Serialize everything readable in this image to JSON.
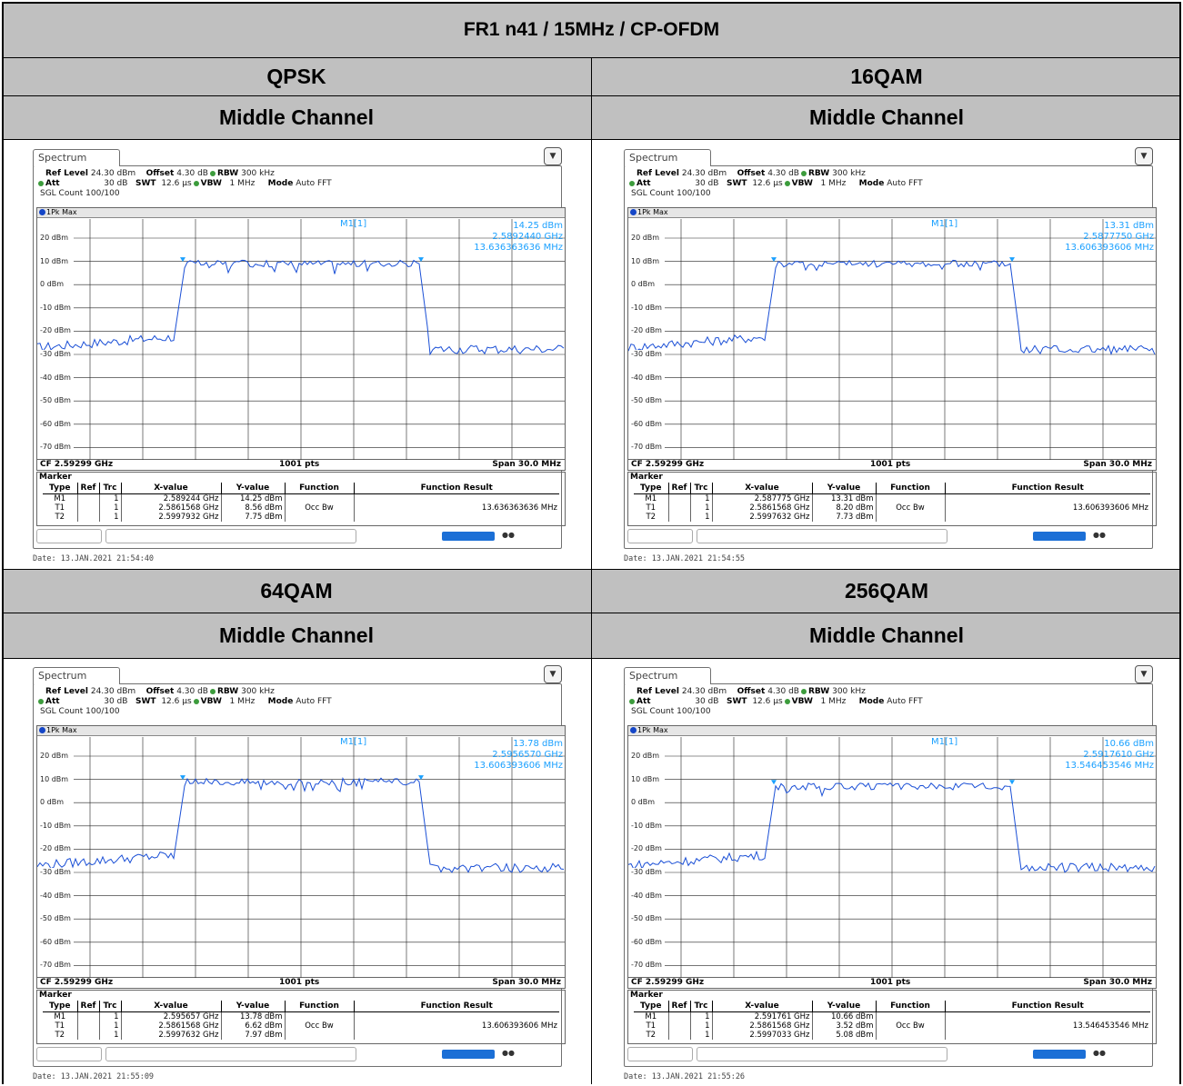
{
  "table": {
    "title": "FR1 n41 / 15MHz / CP-OFDM",
    "modulations": [
      "QPSK",
      "16QAM",
      "64QAM",
      "256QAM"
    ],
    "channel_label": "Middle Channel"
  },
  "common": {
    "tab": "Spectrum",
    "ref_level_label": "Ref Level",
    "ref_level": "24.30 dBm",
    "offset_label": "Offset",
    "offset": "4.30 dB",
    "rbw_label": "RBW",
    "rbw": "300 kHz",
    "att_label": "Att",
    "att": "30 dB",
    "swt_label": "SWT",
    "swt": "12.6 µs",
    "vbw_label": "VBW",
    "vbw": "1 MHz",
    "mode_label": "Mode",
    "mode": "Auto FFT",
    "sgl": "SGL Count 100/100",
    "trace": "1Pk Max",
    "y_ticks": [
      "20 dBm",
      "10 dBm",
      "0 dBm",
      "-10 dBm",
      "-20 dBm",
      "-30 dBm",
      "-40 dBm",
      "-50 dBm",
      "-60 dBm",
      "-70 dBm"
    ],
    "cf": "CF 2.59299 GHz",
    "pts": "1001 pts",
    "span": "Span 30.0 MHz",
    "marker_title": "Marker",
    "cols": [
      "Type",
      "Ref",
      "Trc",
      "X-value",
      "Y-value",
      "Function",
      "Function Result"
    ],
    "occ_label": "Occ Bw",
    "m1_label": "M1[1]",
    "trc": "1"
  },
  "panels": [
    {
      "m1_y": "14.25 dBm",
      "m1_x": "2.5892440 GHz",
      "occ": "13.636363636 MHz",
      "rows": [
        {
          "type": "M1",
          "x": "2.589244 GHz",
          "y": "14.25 dBm",
          "fn": "",
          "res": ""
        },
        {
          "type": "T1",
          "x": "2.5861568 GHz",
          "y": "8.56 dBm",
          "fn": "Occ Bw",
          "res": "13.636363636 MHz"
        },
        {
          "type": "T2",
          "x": "2.5997932 GHz",
          "y": "7.75 dBm",
          "fn": "",
          "res": ""
        }
      ],
      "date": "Date: 13.JAN.2021  21:54:40"
    },
    {
      "m1_y": "13.31 dBm",
      "m1_x": "2.5877750 GHz",
      "occ": "13.606393606 MHz",
      "rows": [
        {
          "type": "M1",
          "x": "2.587775 GHz",
          "y": "13.31 dBm",
          "fn": "",
          "res": ""
        },
        {
          "type": "T1",
          "x": "2.5861568 GHz",
          "y": "8.20 dBm",
          "fn": "Occ Bw",
          "res": "13.606393606 MHz"
        },
        {
          "type": "T2",
          "x": "2.5997632 GHz",
          "y": "7.73 dBm",
          "fn": "",
          "res": ""
        }
      ],
      "date": "Date: 13.JAN.2021  21:54:55"
    },
    {
      "m1_y": "13.78 dBm",
      "m1_x": "2.5956570 GHz",
      "occ": "13.606393606 MHz",
      "rows": [
        {
          "type": "M1",
          "x": "2.595657 GHz",
          "y": "13.78 dBm",
          "fn": "",
          "res": ""
        },
        {
          "type": "T1",
          "x": "2.5861568 GHz",
          "y": "6.62 dBm",
          "fn": "Occ Bw",
          "res": "13.606393606 MHz"
        },
        {
          "type": "T2",
          "x": "2.5997632 GHz",
          "y": "7.97 dBm",
          "fn": "",
          "res": ""
        }
      ],
      "date": "Date: 13.JAN.2021  21:55:09"
    },
    {
      "m1_y": "10.66 dBm",
      "m1_x": "2.5917610 GHz",
      "occ": "13.546453546 MHz",
      "rows": [
        {
          "type": "M1",
          "x": "2.591761 GHz",
          "y": "10.66 dBm",
          "fn": "",
          "res": ""
        },
        {
          "type": "T1",
          "x": "2.5861568 GHz",
          "y": "3.52 dBm",
          "fn": "Occ Bw",
          "res": "13.546453546 MHz"
        },
        {
          "type": "T2",
          "x": "2.5997033 GHz",
          "y": "5.08 dBm",
          "fn": "",
          "res": ""
        }
      ],
      "date": "Date: 13.JAN.2021  21:55:26"
    }
  ],
  "colors": {
    "header_bg": "#c0c0c0",
    "trace": "#1a4fd6",
    "marker": "#1aa0ff"
  }
}
